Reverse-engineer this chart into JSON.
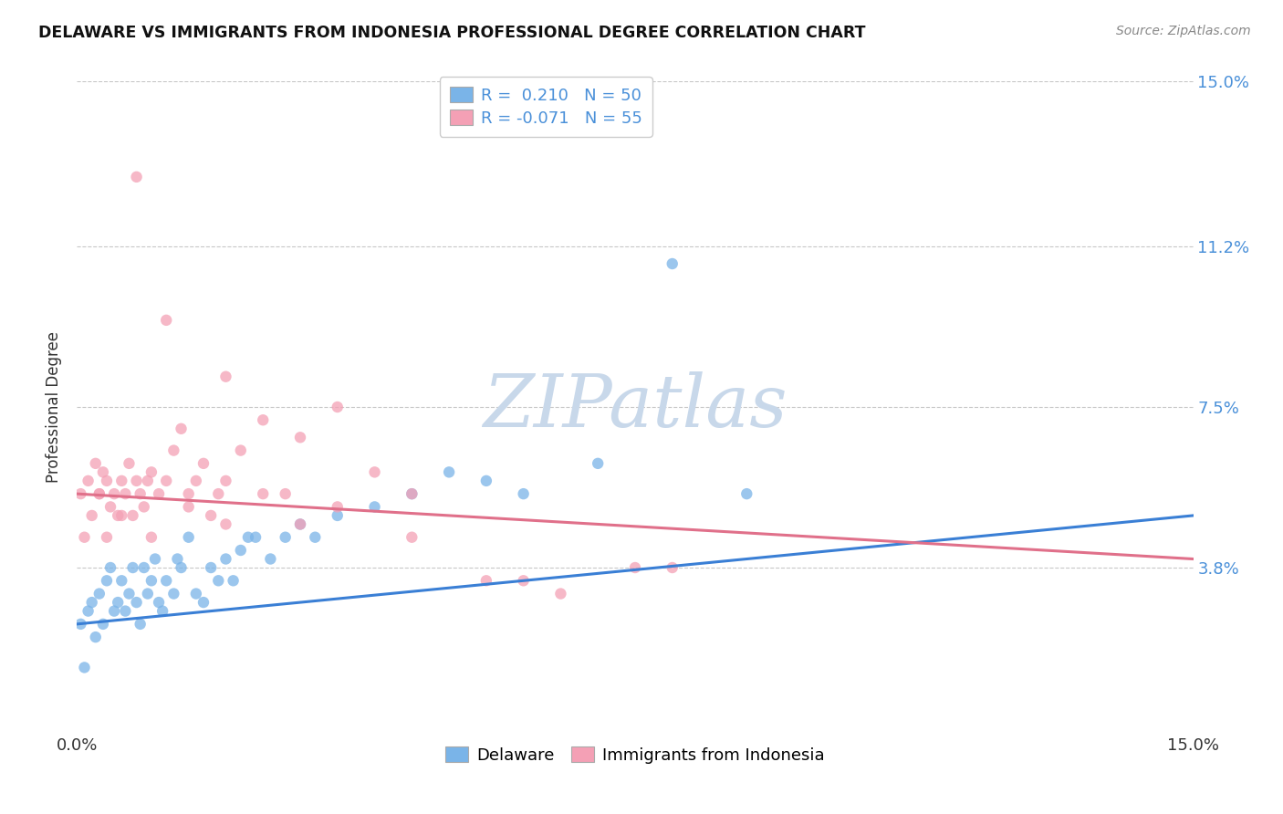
{
  "title": "DELAWARE VS IMMIGRANTS FROM INDONESIA PROFESSIONAL DEGREE CORRELATION CHART",
  "source": "Source: ZipAtlas.com",
  "ylabel": "Professional Degree",
  "xmin": 0.0,
  "xmax": 15.0,
  "ymin": 0.0,
  "ymax": 15.0,
  "ytick_values": [
    3.8,
    7.5,
    11.2,
    15.0
  ],
  "xtick_values": [
    0.0,
    15.0
  ],
  "watermark_text": "ZIPatlas",
  "legend_entries": [
    {
      "label": "Delaware",
      "color": "#7ab4e8",
      "line_color": "#3a7fd5",
      "R": 0.21,
      "N": 50
    },
    {
      "label": "Immigrants from Indonesia",
      "color": "#f4a0b5",
      "line_color": "#e0708a",
      "R": -0.071,
      "N": 55
    }
  ],
  "delaware_x": [
    0.05,
    0.1,
    0.15,
    0.2,
    0.25,
    0.3,
    0.35,
    0.4,
    0.5,
    0.55,
    0.6,
    0.65,
    0.7,
    0.75,
    0.8,
    0.85,
    0.9,
    0.95,
    1.0,
    1.05,
    1.1,
    1.15,
    1.2,
    1.3,
    1.4,
    1.5,
    1.6,
    1.7,
    1.8,
    1.9,
    2.0,
    2.1,
    2.2,
    2.4,
    2.6,
    2.8,
    3.0,
    3.2,
    3.5,
    4.0,
    4.5,
    5.0,
    5.5,
    6.0,
    7.0,
    8.0,
    9.0,
    2.3,
    1.35,
    0.45
  ],
  "delaware_y": [
    2.5,
    1.5,
    2.8,
    3.0,
    2.2,
    3.2,
    2.5,
    3.5,
    2.8,
    3.0,
    3.5,
    2.8,
    3.2,
    3.8,
    3.0,
    2.5,
    3.8,
    3.2,
    3.5,
    4.0,
    3.0,
    2.8,
    3.5,
    3.2,
    3.8,
    4.5,
    3.2,
    3.0,
    3.8,
    3.5,
    4.0,
    3.5,
    4.2,
    4.5,
    4.0,
    4.5,
    4.8,
    4.5,
    5.0,
    5.2,
    5.5,
    6.0,
    5.8,
    5.5,
    6.2,
    10.8,
    5.5,
    4.5,
    4.0,
    3.8
  ],
  "indonesia_x": [
    0.05,
    0.1,
    0.15,
    0.2,
    0.25,
    0.3,
    0.35,
    0.4,
    0.45,
    0.5,
    0.55,
    0.6,
    0.65,
    0.7,
    0.75,
    0.8,
    0.85,
    0.9,
    0.95,
    1.0,
    1.1,
    1.2,
    1.3,
    1.4,
    1.5,
    1.6,
    1.7,
    1.8,
    1.9,
    2.0,
    2.2,
    2.5,
    2.8,
    3.0,
    3.5,
    4.0,
    4.5,
    5.5,
    6.5,
    7.5,
    0.3,
    0.6,
    1.0,
    1.5,
    2.0,
    2.5,
    3.0,
    3.5,
    4.5,
    6.0,
    8.0,
    0.8,
    1.2,
    2.0,
    0.4
  ],
  "indonesia_y": [
    5.5,
    4.5,
    5.8,
    5.0,
    6.2,
    5.5,
    6.0,
    5.8,
    5.2,
    5.5,
    5.0,
    5.8,
    5.5,
    6.2,
    5.0,
    5.8,
    5.5,
    5.2,
    5.8,
    6.0,
    5.5,
    5.8,
    6.5,
    7.0,
    5.5,
    5.8,
    6.2,
    5.0,
    5.5,
    5.8,
    6.5,
    7.2,
    5.5,
    6.8,
    7.5,
    6.0,
    5.5,
    3.5,
    3.2,
    3.8,
    5.5,
    5.0,
    4.5,
    5.2,
    4.8,
    5.5,
    4.8,
    5.2,
    4.5,
    3.5,
    3.8,
    12.8,
    9.5,
    8.2,
    4.5
  ],
  "delaware_color": "#7ab4e8",
  "indonesia_color": "#f4a0b5",
  "delaware_line_color": "#3a7fd5",
  "indonesia_line_color": "#e0708a",
  "grid_color": "#c8c8c8",
  "background_color": "#ffffff",
  "right_axis_color": "#4a90d9",
  "watermark_color": "#c8d8ea"
}
